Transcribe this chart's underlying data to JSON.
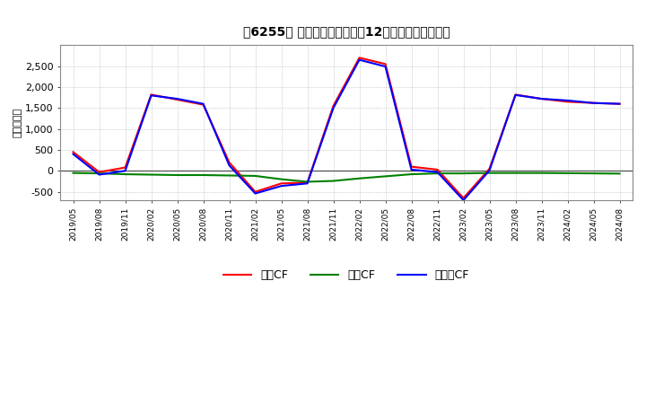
{
  "title": "［6255］ キャッシュフローの12か月移動合計の推移",
  "ylabel": "（百万円）",
  "background_color": "#ffffff",
  "plot_bg_color": "#ffffff",
  "grid_color": "#aaaaaa",
  "ylim": [
    -700,
    3000
  ],
  "yticks": [
    -500,
    0,
    500,
    1000,
    1500,
    2000,
    2500
  ],
  "dates": [
    "2019/05",
    "2019/08",
    "2019/11",
    "2020/02",
    "2020/05",
    "2020/08",
    "2020/11",
    "2021/02",
    "2021/05",
    "2021/08",
    "2021/11",
    "2022/02",
    "2022/05",
    "2022/08",
    "2022/11",
    "2023/02",
    "2023/05",
    "2023/08",
    "2023/11",
    "2024/02",
    "2024/05",
    "2024/08"
  ],
  "operating_cf": [
    450,
    -30,
    80,
    1820,
    1700,
    1580,
    200,
    -500,
    -300,
    -280,
    1550,
    2700,
    2550,
    100,
    30,
    -650,
    50,
    1820,
    1720,
    1650,
    1620,
    1600
  ],
  "investing_cf": [
    -50,
    -60,
    -80,
    -90,
    -100,
    -100,
    -110,
    -120,
    -200,
    -260,
    -240,
    -180,
    -130,
    -80,
    -60,
    -60,
    -50,
    -50,
    -50,
    -55,
    -60,
    -65
  ],
  "free_cf": [
    400,
    -90,
    0,
    1800,
    1720,
    1600,
    130,
    -540,
    -360,
    -300,
    1500,
    2650,
    2490,
    30,
    -30,
    -700,
    10,
    1810,
    1720,
    1680,
    1620,
    1600
  ],
  "operating_color": "#ff0000",
  "investing_color": "#008000",
  "free_color": "#0000ff",
  "line_width": 1.5,
  "legend_labels": [
    "営業CF",
    "投資CF",
    "フリーCF"
  ]
}
